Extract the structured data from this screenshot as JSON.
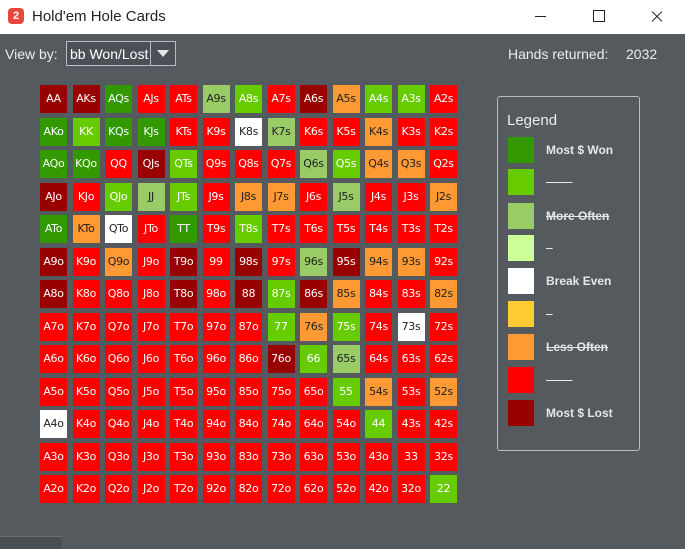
{
  "window": {
    "title": "Hold'em Hole Cards",
    "icon_label": "2"
  },
  "toolbar": {
    "view_by_label": "View by:",
    "view_by_value": "bb Won/Lost",
    "hands_label": "Hands returned:",
    "hands_value": "2032"
  },
  "colors": {
    "G": "#339900",
    "g": "#66cc00",
    "l": "#99cc66",
    "p": "#ccff99",
    "W": "#ffffff",
    "Y": "#ffcc33",
    "O": "#ff9933",
    "R": "#ff0000",
    "D": "#990000"
  },
  "grid": {
    "rows": [
      [
        [
          "AA",
          "D"
        ],
        [
          "AKs",
          "D"
        ],
        [
          "AQs",
          "G"
        ],
        [
          "AJs",
          "R"
        ],
        [
          "ATs",
          "R"
        ],
        [
          "A9s",
          "l"
        ],
        [
          "A8s",
          "g"
        ],
        [
          "A7s",
          "R"
        ],
        [
          "A6s",
          "D"
        ],
        [
          "A5s",
          "O"
        ],
        [
          "A4s",
          "g"
        ],
        [
          "A3s",
          "g"
        ],
        [
          "A2s",
          "R"
        ]
      ],
      [
        [
          "AKo",
          "G"
        ],
        [
          "KK",
          "g"
        ],
        [
          "KQs",
          "G"
        ],
        [
          "KJs",
          "G"
        ],
        [
          "KTs",
          "R"
        ],
        [
          "K9s",
          "R"
        ],
        [
          "K8s",
          "W"
        ],
        [
          "K7s",
          "l"
        ],
        [
          "K6s",
          "R"
        ],
        [
          "K5s",
          "R"
        ],
        [
          "K4s",
          "O"
        ],
        [
          "K3s",
          "R"
        ],
        [
          "K2s",
          "R"
        ]
      ],
      [
        [
          "AQo",
          "G"
        ],
        [
          "KQo",
          "G"
        ],
        [
          "QQ",
          "R"
        ],
        [
          "QJs",
          "D"
        ],
        [
          "QTs",
          "g"
        ],
        [
          "Q9s",
          "R"
        ],
        [
          "Q8s",
          "R"
        ],
        [
          "Q7s",
          "R"
        ],
        [
          "Q6s",
          "l"
        ],
        [
          "Q5s",
          "g"
        ],
        [
          "Q4s",
          "O"
        ],
        [
          "Q3s",
          "O"
        ],
        [
          "Q2s",
          "R"
        ]
      ],
      [
        [
          "AJo",
          "D"
        ],
        [
          "KJo",
          "R"
        ],
        [
          "QJo",
          "g"
        ],
        [
          "JJ",
          "l"
        ],
        [
          "JTs",
          "g"
        ],
        [
          "J9s",
          "R"
        ],
        [
          "J8s",
          "O"
        ],
        [
          "J7s",
          "O"
        ],
        [
          "J6s",
          "R"
        ],
        [
          "J5s",
          "l"
        ],
        [
          "J4s",
          "R"
        ],
        [
          "J3s",
          "R"
        ],
        [
          "J2s",
          "O"
        ]
      ],
      [
        [
          "ATo",
          "G"
        ],
        [
          "KTo",
          "O"
        ],
        [
          "QTo",
          "W"
        ],
        [
          "JTo",
          "R"
        ],
        [
          "TT",
          "G"
        ],
        [
          "T9s",
          "R"
        ],
        [
          "T8s",
          "g"
        ],
        [
          "T7s",
          "R"
        ],
        [
          "T6s",
          "R"
        ],
        [
          "T5s",
          "R"
        ],
        [
          "T4s",
          "R"
        ],
        [
          "T3s",
          "R"
        ],
        [
          "T2s",
          "R"
        ]
      ],
      [
        [
          "A9o",
          "D"
        ],
        [
          "K9o",
          "R"
        ],
        [
          "Q9o",
          "O"
        ],
        [
          "J9o",
          "R"
        ],
        [
          "T9o",
          "D"
        ],
        [
          "99",
          "R"
        ],
        [
          "98s",
          "D"
        ],
        [
          "97s",
          "R"
        ],
        [
          "96s",
          "l"
        ],
        [
          "95s",
          "D"
        ],
        [
          "94s",
          "O"
        ],
        [
          "93s",
          "O"
        ],
        [
          "92s",
          "R"
        ]
      ],
      [
        [
          "A8o",
          "D"
        ],
        [
          "K8o",
          "R"
        ],
        [
          "Q8o",
          "R"
        ],
        [
          "J8o",
          "R"
        ],
        [
          "T8o",
          "D"
        ],
        [
          "98o",
          "R"
        ],
        [
          "88",
          "D"
        ],
        [
          "87s",
          "g"
        ],
        [
          "86s",
          "D"
        ],
        [
          "85s",
          "O"
        ],
        [
          "84s",
          "R"
        ],
        [
          "83s",
          "R"
        ],
        [
          "82s",
          "O"
        ]
      ],
      [
        [
          "A7o",
          "R"
        ],
        [
          "K7o",
          "R"
        ],
        [
          "Q7o",
          "R"
        ],
        [
          "J7o",
          "R"
        ],
        [
          "T7o",
          "R"
        ],
        [
          "97o",
          "R"
        ],
        [
          "87o",
          "R"
        ],
        [
          "77",
          "g"
        ],
        [
          "76s",
          "O"
        ],
        [
          "75s",
          "g"
        ],
        [
          "74s",
          "R"
        ],
        [
          "73s",
          "W"
        ],
        [
          "72s",
          "R"
        ]
      ],
      [
        [
          "A6o",
          "R"
        ],
        [
          "K6o",
          "R"
        ],
        [
          "Q6o",
          "R"
        ],
        [
          "J6o",
          "R"
        ],
        [
          "T6o",
          "R"
        ],
        [
          "96o",
          "R"
        ],
        [
          "86o",
          "R"
        ],
        [
          "76o",
          "D"
        ],
        [
          "66",
          "g"
        ],
        [
          "65s",
          "l"
        ],
        [
          "64s",
          "R"
        ],
        [
          "63s",
          "R"
        ],
        [
          "62s",
          "R"
        ]
      ],
      [
        [
          "A5o",
          "R"
        ],
        [
          "K5o",
          "R"
        ],
        [
          "Q5o",
          "R"
        ],
        [
          "J5o",
          "R"
        ],
        [
          "T5o",
          "R"
        ],
        [
          "95o",
          "R"
        ],
        [
          "85o",
          "R"
        ],
        [
          "75o",
          "R"
        ],
        [
          "65o",
          "R"
        ],
        [
          "55",
          "g"
        ],
        [
          "54s",
          "O"
        ],
        [
          "53s",
          "R"
        ],
        [
          "52s",
          "O"
        ]
      ],
      [
        [
          "A4o",
          "W"
        ],
        [
          "K4o",
          "R"
        ],
        [
          "Q4o",
          "R"
        ],
        [
          "J4o",
          "R"
        ],
        [
          "T4o",
          "R"
        ],
        [
          "94o",
          "R"
        ],
        [
          "84o",
          "R"
        ],
        [
          "74o",
          "R"
        ],
        [
          "64o",
          "R"
        ],
        [
          "54o",
          "R"
        ],
        [
          "44",
          "g"
        ],
        [
          "43s",
          "R"
        ],
        [
          "42s",
          "R"
        ]
      ],
      [
        [
          "A3o",
          "R"
        ],
        [
          "K3o",
          "R"
        ],
        [
          "Q3o",
          "R"
        ],
        [
          "J3o",
          "R"
        ],
        [
          "T3o",
          "R"
        ],
        [
          "93o",
          "R"
        ],
        [
          "83o",
          "R"
        ],
        [
          "73o",
          "R"
        ],
        [
          "63o",
          "R"
        ],
        [
          "53o",
          "R"
        ],
        [
          "43o",
          "R"
        ],
        [
          "33",
          "R"
        ],
        [
          "32s",
          "R"
        ]
      ],
      [
        [
          "A2o",
          "R"
        ],
        [
          "K2o",
          "R"
        ],
        [
          "Q2o",
          "R"
        ],
        [
          "J2o",
          "R"
        ],
        [
          "T2o",
          "R"
        ],
        [
          "92o",
          "R"
        ],
        [
          "82o",
          "R"
        ],
        [
          "72o",
          "R"
        ],
        [
          "62o",
          "R"
        ],
        [
          "52o",
          "R"
        ],
        [
          "42o",
          "R"
        ],
        [
          "32o",
          "R"
        ],
        [
          "22",
          "g"
        ]
      ]
    ]
  },
  "legend": {
    "title": "Legend",
    "items": [
      {
        "color": "#339900",
        "label": "Most $ Won",
        "strike": false
      },
      {
        "color": "#66cc00",
        "label": "        ",
        "strike": true
      },
      {
        "color": "#99cc66",
        "label": "More Often",
        "strike": true
      },
      {
        "color": "#ccff99",
        "label": "  ",
        "strike": true
      },
      {
        "color": "#ffffff",
        "label": "Break Even",
        "strike": false
      },
      {
        "color": "#ffcc33",
        "label": "  ",
        "strike": true
      },
      {
        "color": "#ff9933",
        "label": "Less Often",
        "strike": true
      },
      {
        "color": "#ff0000",
        "label": "        ",
        "strike": true
      },
      {
        "color": "#990000",
        "label": "Most $ Lost",
        "strike": false
      }
    ]
  }
}
